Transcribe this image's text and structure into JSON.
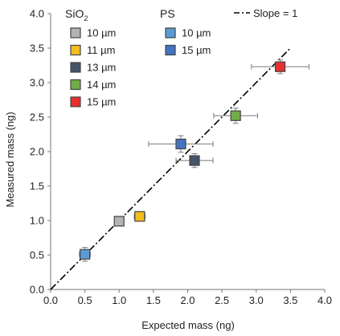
{
  "chart_data": {
    "type": "scatter",
    "xlabel": "Expected mass (ng)",
    "ylabel": "Measured mass (ng)",
    "xlim": [
      0.0,
      4.0
    ],
    "ylim": [
      0.0,
      4.0
    ],
    "x_ticks": [
      "0.0",
      "0.5",
      "1.0",
      "1.5",
      "2.0",
      "2.5",
      "3.0",
      "3.5",
      "4.0"
    ],
    "y_ticks": [
      "0.0",
      "0.5",
      "1.0",
      "1.5",
      "2.0",
      "2.5",
      "3.0",
      "3.5",
      "4.0"
    ],
    "grid": false,
    "legend_placement": "top",
    "legend_groups": [
      {
        "header": "SiO",
        "header_subscript": "2"
      },
      {
        "header": "PS"
      }
    ],
    "reference_line": {
      "label": "Slope = 1",
      "slope": 1,
      "style": "dash-dot",
      "color": "#000000"
    },
    "series": [
      {
        "group": 0,
        "name": "10 µm",
        "color": "#b3b3b3",
        "points": [
          {
            "x": 1.0,
            "y": 0.99,
            "xerr": 0.06,
            "yerr": 0.05
          }
        ]
      },
      {
        "group": 0,
        "name": "11 µm",
        "color": "#f2bf1f",
        "points": [
          {
            "x": 1.3,
            "y": 1.06,
            "xerr": 0.08,
            "yerr": 0.05
          }
        ]
      },
      {
        "group": 0,
        "name": "13 µm",
        "color": "#44546a",
        "points": [
          {
            "x": 2.1,
            "y": 1.87,
            "xerr": 0.27,
            "yerr": 0.1
          }
        ]
      },
      {
        "group": 0,
        "name": "14 µm",
        "color": "#70ad47",
        "points": [
          {
            "x": 2.7,
            "y": 2.52,
            "xerr": 0.32,
            "yerr": 0.11
          }
        ]
      },
      {
        "group": 0,
        "name": "15 µm",
        "color": "#e8312f",
        "points": [
          {
            "x": 3.35,
            "y": 3.23,
            "xerr": 0.42,
            "yerr": 0.1
          }
        ]
      },
      {
        "group": 1,
        "name": "10 µm",
        "color": "#5b9bd5",
        "points": [
          {
            "x": 0.5,
            "y": 0.51,
            "xerr": 0.08,
            "yerr": 0.1
          }
        ]
      },
      {
        "group": 1,
        "name": "15 µm",
        "color": "#4472c4",
        "points": [
          {
            "x": 1.9,
            "y": 2.11,
            "xerr": 0.47,
            "yerr": 0.12
          }
        ]
      }
    ]
  }
}
